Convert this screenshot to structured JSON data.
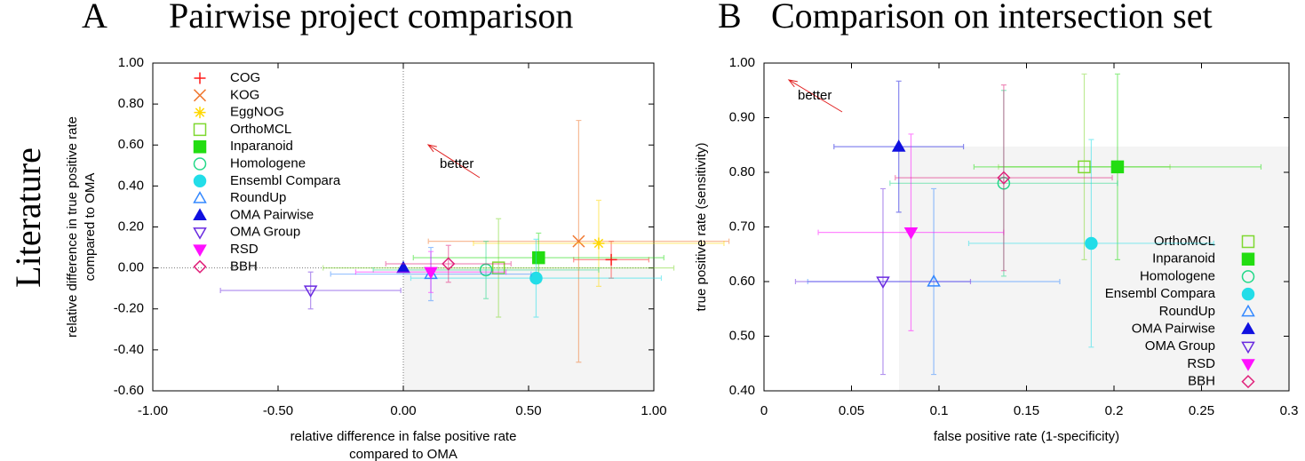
{
  "row_label": "Literature",
  "chart_data": [
    {
      "type": "scatter",
      "panel_label": "A",
      "title": "Pairwise project comparison",
      "xlabel": [
        "relative difference in false positive rate",
        "compared to OMA"
      ],
      "ylabel": [
        "relative difference in true positive rate",
        "compared to OMA"
      ],
      "annotation": "better",
      "legend": "upper left",
      "xlim": [
        -1,
        1
      ],
      "xticks": [
        {
          "value": -1,
          "label": "-1.00"
        },
        {
          "value": -0.5,
          "label": "-0.50"
        },
        {
          "value": 0,
          "label": "0.00"
        },
        {
          "value": 0.5,
          "label": "0.50"
        },
        {
          "value": 1,
          "label": "1.00"
        }
      ],
      "ylim": [
        -0.6,
        1
      ],
      "yticks": [
        {
          "value": -0.6,
          "label": "-0.60"
        },
        {
          "value": -0.4,
          "label": "-0.40"
        },
        {
          "value": -0.2,
          "label": "-0.20"
        },
        {
          "value": 0,
          "label": "0.00"
        },
        {
          "value": 0.2,
          "label": "0.20"
        },
        {
          "value": 0.4,
          "label": "0.40"
        },
        {
          "value": 0.6,
          "label": "0.60"
        },
        {
          "value": 0.8,
          "label": "0.80"
        },
        {
          "value": 1,
          "label": "1.00"
        }
      ],
      "series": [
        {
          "name": "COG",
          "color": "#ff1a1a",
          "marker": "plus",
          "filled": false,
          "x": [
            0.83
          ],
          "values": [
            0.04
          ],
          "xerr": [
            0.15
          ],
          "yerr": [
            0.09
          ]
        },
        {
          "name": "KOG",
          "color": "#f07830",
          "marker": "cross",
          "filled": false,
          "x": [
            0.7
          ],
          "values": [
            0.13
          ],
          "xerr": [
            0.6
          ],
          "yerr": [
            0.59
          ]
        },
        {
          "name": "EggNOG",
          "color": "#ffd800",
          "marker": "star",
          "filled": false,
          "x": [
            0.78
          ],
          "values": [
            0.12
          ],
          "xerr": [
            0.5
          ],
          "yerr": [
            0.21
          ]
        },
        {
          "name": "OrthoMCL",
          "color": "#7fd830",
          "marker": "square",
          "filled": false,
          "x": [
            0.38
          ],
          "values": [
            0.0
          ],
          "xerr": [
            0.7
          ],
          "yerr": [
            0.24
          ]
        },
        {
          "name": "Inparanoid",
          "color": "#22dd11",
          "marker": "square",
          "filled": true,
          "x": [
            0.54
          ],
          "values": [
            0.05
          ],
          "xerr": [
            0.5
          ],
          "yerr": [
            0.12
          ]
        },
        {
          "name": "Homologene",
          "color": "#22d888",
          "marker": "circle",
          "filled": false,
          "x": [
            0.33
          ],
          "values": [
            -0.01
          ],
          "xerr": [
            0.45
          ],
          "yerr": [
            0.14
          ]
        },
        {
          "name": "Ensembl Compara",
          "color": "#22dde8",
          "marker": "circle",
          "filled": true,
          "x": [
            0.53
          ],
          "values": [
            -0.05
          ],
          "xerr": [
            0.5
          ],
          "yerr": [
            0.19
          ]
        },
        {
          "name": "RoundUp",
          "color": "#3388ff",
          "marker": "triangle",
          "filled": false,
          "x": [
            0.11
          ],
          "values": [
            -0.03
          ],
          "xerr": [
            0.4
          ],
          "yerr": [
            0.13
          ]
        },
        {
          "name": "OMA Pairwise",
          "color": "#1010e0",
          "marker": "triangle",
          "filled": true,
          "x": [
            0
          ],
          "values": [
            0
          ],
          "xerr": [
            0
          ],
          "yerr": [
            0
          ]
        },
        {
          "name": "OMA Group",
          "color": "#6a2ae0",
          "marker": "triangle-down",
          "filled": false,
          "x": [
            -0.37
          ],
          "values": [
            -0.11
          ],
          "xerr": [
            0.36
          ],
          "yerr": [
            0.09
          ]
        },
        {
          "name": "RSD",
          "color": "#ff10ff",
          "marker": "triangle-down",
          "filled": true,
          "x": [
            0.11
          ],
          "values": [
            -0.02
          ],
          "xerr": [
            0.3
          ],
          "yerr": [
            0.1
          ]
        },
        {
          "name": "BBH",
          "color": "#e0207a",
          "marker": "diamond",
          "filled": false,
          "x": [
            0.18
          ],
          "values": [
            0.02
          ],
          "xerr": [
            0.25
          ],
          "yerr": [
            0.09
          ]
        }
      ]
    },
    {
      "type": "scatter",
      "panel_label": "B",
      "title": "Comparison on intersection set",
      "xlabel": [
        "false positive rate (1-specificity)"
      ],
      "ylabel": [
        "true positive rate (sensitivity)"
      ],
      "annotation": "better",
      "legend": "lower right",
      "xlim": [
        0,
        0.3
      ],
      "xticks": [
        0,
        0.05,
        0.1,
        0.15,
        0.2,
        0.25,
        0.3
      ],
      "ylim": [
        0.4,
        1
      ],
      "yticks": [
        {
          "value": 0.4,
          "label": "0.40"
        },
        {
          "value": 0.5,
          "label": "0.50"
        },
        {
          "value": 0.6,
          "label": "0.60"
        },
        {
          "value": 0.7,
          "label": "0.70"
        },
        {
          "value": 0.8,
          "label": "0.80"
        },
        {
          "value": 0.9,
          "label": "0.90"
        },
        {
          "value": 1,
          "label": "1.00"
        }
      ],
      "series": [
        {
          "name": "OrthoMCL",
          "color": "#7fd830",
          "marker": "square",
          "filled": false,
          "x": [
            0.183
          ],
          "values": [
            0.81
          ],
          "xerr": [
            0.049
          ],
          "yerr": [
            0.17
          ]
        },
        {
          "name": "Inparanoid",
          "color": "#22dd11",
          "marker": "square",
          "filled": true,
          "x": [
            0.202
          ],
          "values": [
            0.81
          ],
          "xerr": [
            0.082
          ],
          "yerr": [
            0.17
          ]
        },
        {
          "name": "Homologene",
          "color": "#22d888",
          "marker": "circle",
          "filled": false,
          "x": [
            0.137
          ],
          "values": [
            0.78
          ],
          "xerr": [
            0.065
          ],
          "yerr": [
            0.17
          ]
        },
        {
          "name": "Ensembl Compara",
          "color": "#22dde8",
          "marker": "circle",
          "filled": true,
          "x": [
            0.187
          ],
          "values": [
            0.67
          ],
          "xerr": [
            0.07
          ],
          "yerr": [
            0.19
          ]
        },
        {
          "name": "RoundUp",
          "color": "#3388ff",
          "marker": "triangle",
          "filled": false,
          "x": [
            0.097
          ],
          "values": [
            0.6
          ],
          "xerr": [
            0.072
          ],
          "yerr": [
            0.17
          ]
        },
        {
          "name": "OMA Pairwise",
          "color": "#1010e0",
          "marker": "triangle",
          "filled": true,
          "x": [
            0.077
          ],
          "values": [
            0.847
          ],
          "xerr": [
            0.037
          ],
          "yerr": [
            0.12
          ]
        },
        {
          "name": "OMA Group",
          "color": "#6a2ae0",
          "marker": "triangle-down",
          "filled": false,
          "x": [
            0.068
          ],
          "values": [
            0.6
          ],
          "xerr": [
            0.05
          ],
          "yerr": [
            0.17
          ]
        },
        {
          "name": "RSD",
          "color": "#ff10ff",
          "marker": "triangle-down",
          "filled": true,
          "x": [
            0.084
          ],
          "values": [
            0.69
          ],
          "xerr": [
            0.053
          ],
          "yerr": [
            0.18
          ]
        },
        {
          "name": "BBH",
          "color": "#e0207a",
          "marker": "diamond",
          "filled": false,
          "x": [
            0.137
          ],
          "values": [
            0.79
          ],
          "xerr": [
            0.062
          ],
          "yerr": [
            0.17
          ]
        }
      ]
    }
  ]
}
